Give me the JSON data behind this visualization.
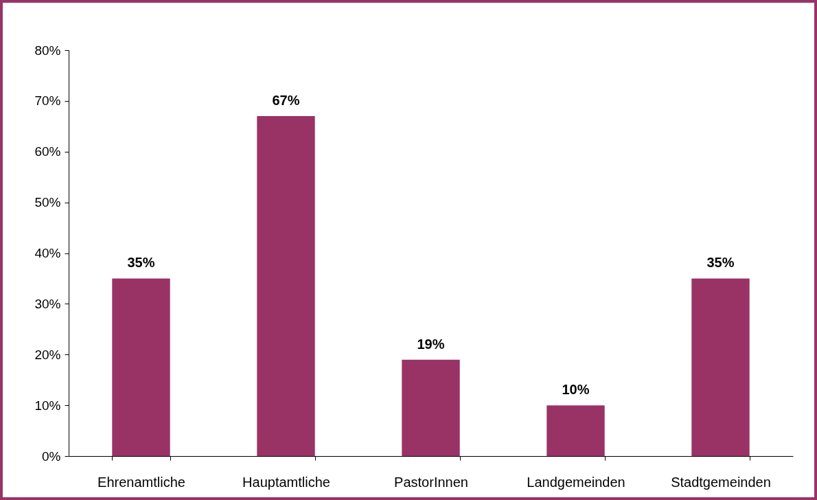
{
  "chart_data": {
    "type": "bar",
    "categories": [
      "Ehrenamtliche",
      "Hauptamtliche",
      "PastorInnen",
      "Landgemeinden",
      "Stadtgemeinden"
    ],
    "values": [
      35,
      67,
      19,
      10,
      35
    ],
    "value_labels": [
      "35%",
      "67%",
      "19%",
      "10%",
      "35%"
    ],
    "color": "#993366",
    "ylim": [
      0,
      80
    ],
    "yticks": [
      {
        "value": 0,
        "label": "0%"
      },
      {
        "value": 10,
        "label": "10%"
      },
      {
        "value": 20,
        "label": "20%"
      },
      {
        "value": 30,
        "label": "30%"
      },
      {
        "value": 40,
        "label": "40%"
      },
      {
        "value": 50,
        "label": "50%"
      },
      {
        "value": 60,
        "label": "60%"
      },
      {
        "value": 70,
        "label": "70%"
      },
      {
        "value": 80,
        "label": "80%"
      }
    ]
  }
}
